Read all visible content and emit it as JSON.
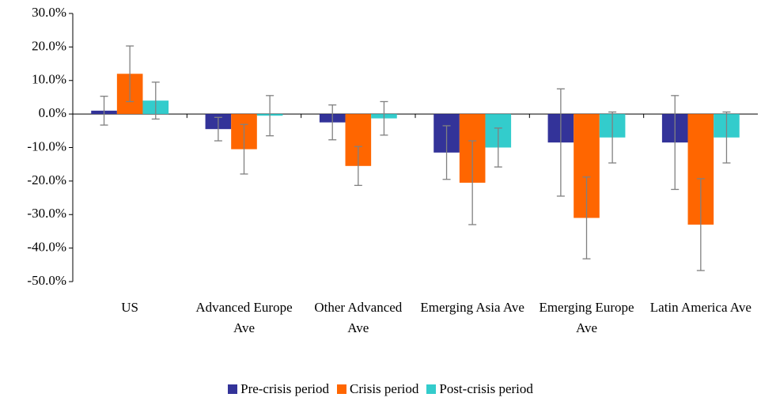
{
  "chart_data": {
    "type": "bar",
    "categories": [
      "US",
      "Advanced Europe Ave",
      "Other Advanced Ave",
      "Emerging Asia Ave",
      "Emerging Europe Ave",
      "Latin America Ave"
    ],
    "series": [
      {
        "name": "Pre-crisis period",
        "color": "#333399",
        "values": [
          1.0,
          -4.5,
          -2.5,
          -11.5,
          -8.5,
          -8.5
        ],
        "errors": [
          4.3,
          3.5,
          5.2,
          8.0,
          16.0,
          14.0
        ]
      },
      {
        "name": "Crisis period",
        "color": "#ff6600",
        "values": [
          12.0,
          -10.5,
          -15.5,
          -20.5,
          -31.0,
          -33.0
        ],
        "errors": [
          8.3,
          7.4,
          5.8,
          12.5,
          12.2,
          13.7
        ]
      },
      {
        "name": "Post-crisis period",
        "color": "#33cccc",
        "values": [
          4.0,
          -0.5,
          -1.3,
          -10.0,
          -7.0,
          -7.0
        ],
        "errors": [
          5.5,
          6.0,
          5.0,
          5.8,
          7.6,
          7.6
        ]
      }
    ],
    "ylim": [
      -50,
      30
    ],
    "yticks": [
      {
        "value": -50,
        "label": "-50.0%"
      },
      {
        "value": -40,
        "label": "-40.0%"
      },
      {
        "value": -30,
        "label": "-30.0%"
      },
      {
        "value": -20,
        "label": "-20.0%"
      },
      {
        "value": -10,
        "label": "-10.0%"
      },
      {
        "value": 0,
        "label": "0.0%"
      },
      {
        "value": 10,
        "label": "10.0%"
      },
      {
        "value": 20,
        "label": "20.0%"
      },
      {
        "value": 30,
        "label": "30.0%"
      }
    ],
    "grid": false,
    "legend": "bottom"
  }
}
